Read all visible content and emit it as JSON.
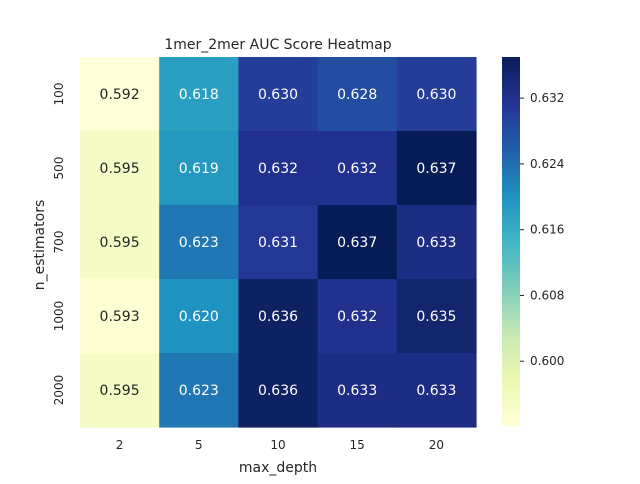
{
  "chart_data": {
    "type": "heatmap",
    "title": "1mer_2mer AUC Score Heatmap",
    "xlabel": "max_depth",
    "ylabel": "n_estimators",
    "x_categories": [
      "2",
      "5",
      "10",
      "15",
      "20"
    ],
    "y_categories": [
      "100",
      "500",
      "700",
      "1000",
      "2000"
    ],
    "values": [
      [
        0.592,
        0.618,
        0.63,
        0.628,
        0.63
      ],
      [
        0.595,
        0.619,
        0.632,
        0.632,
        0.637
      ],
      [
        0.595,
        0.623,
        0.631,
        0.637,
        0.633
      ],
      [
        0.593,
        0.62,
        0.636,
        0.632,
        0.635
      ],
      [
        0.595,
        0.623,
        0.636,
        0.633,
        0.633
      ]
    ],
    "value_labels": [
      [
        "0.592",
        "0.618",
        "0.630",
        "0.628",
        "0.630"
      ],
      [
        "0.595",
        "0.619",
        "0.632",
        "0.632",
        "0.637"
      ],
      [
        "0.595",
        "0.623",
        "0.631",
        "0.637",
        "0.633"
      ],
      [
        "0.593",
        "0.620",
        "0.636",
        "0.632",
        "0.635"
      ],
      [
        "0.595",
        "0.623",
        "0.636",
        "0.633",
        "0.633"
      ]
    ],
    "colormap": "YlGnBu",
    "colorbar": {
      "range": [
        0.592,
        0.637
      ],
      "ticks": [
        "0.600",
        "0.608",
        "0.616",
        "0.624",
        "0.632"
      ]
    }
  }
}
